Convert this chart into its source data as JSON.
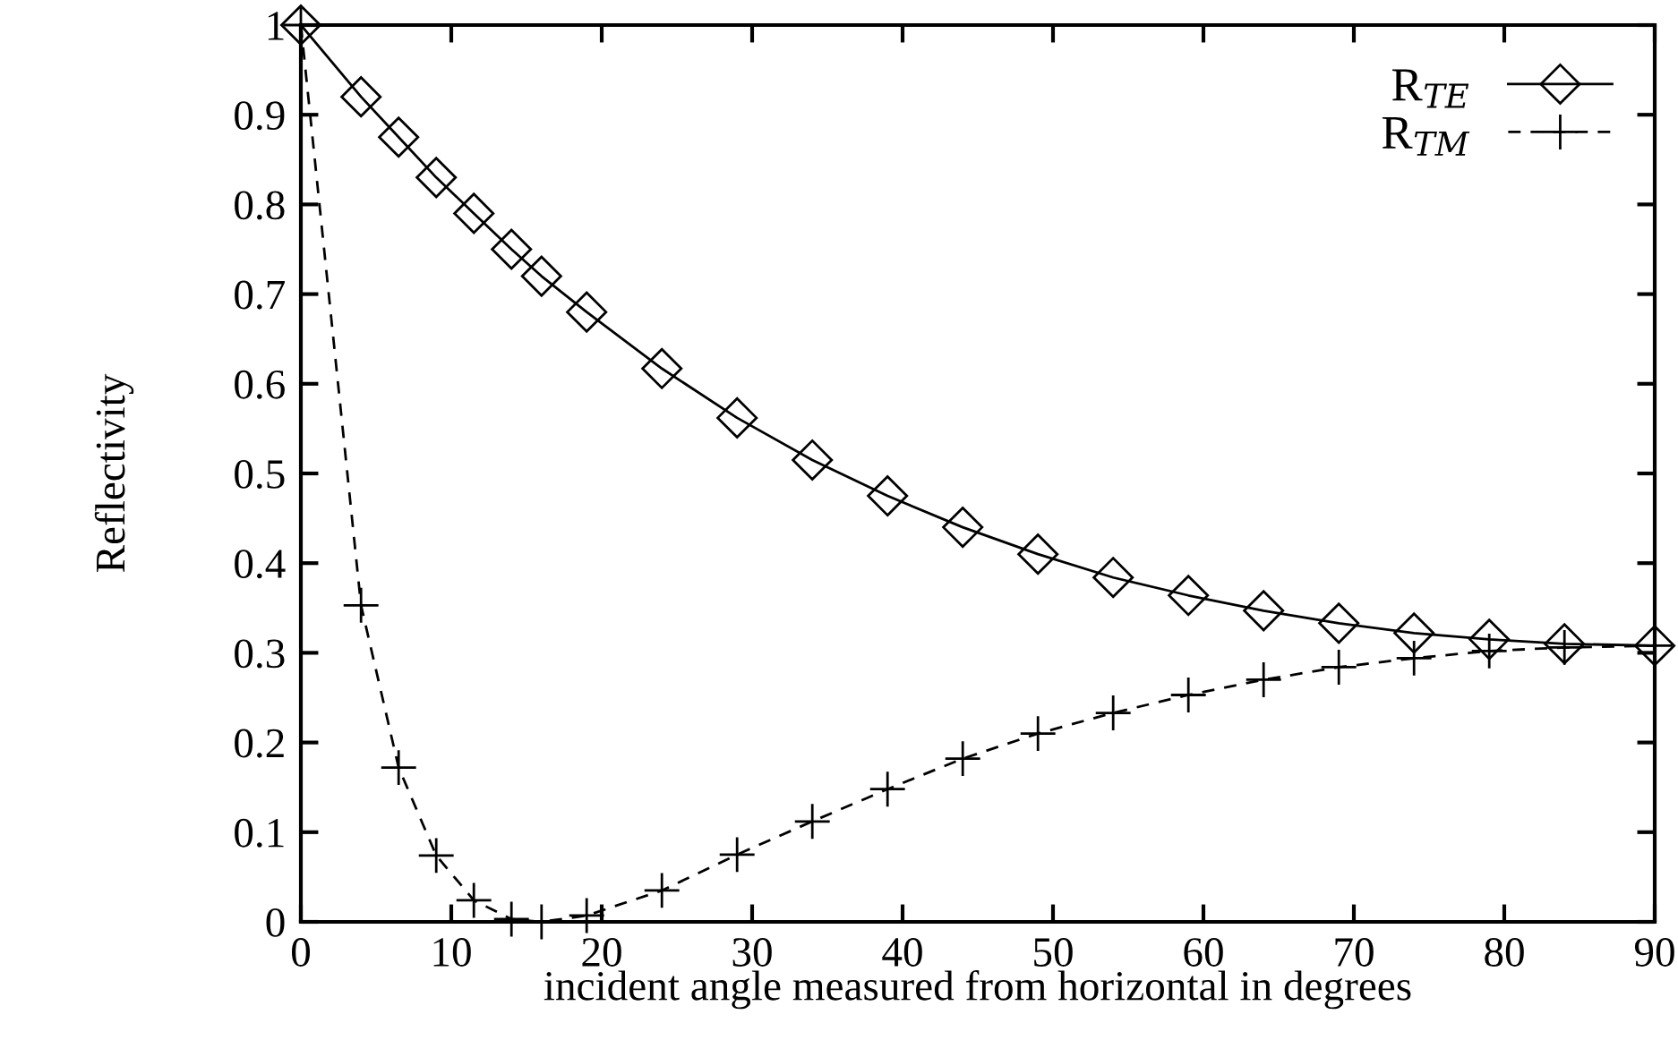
{
  "chart_data": {
    "type": "line",
    "xlabel": "incident angle measured from horizontal in degrees",
    "ylabel": "Reflectivity",
    "x": [
      0,
      4,
      6.5,
      9,
      11.5,
      14,
      16,
      19,
      24,
      29,
      34,
      39,
      44,
      49,
      54,
      59,
      64,
      69,
      74,
      79,
      84,
      90
    ],
    "series": [
      {
        "name": "R$_{TE}$",
        "color": "#000000",
        "marker": "diamond",
        "line_style": "solid",
        "values": [
          1,
          0.92,
          0.875,
          0.83,
          0.79,
          0.75,
          0.72,
          0.68,
          0.617,
          0.562,
          0.515,
          0.475,
          0.44,
          0.41,
          0.384,
          0.364,
          0.347,
          0.333,
          0.322,
          0.315,
          0.31,
          0.308
        ]
      },
      {
        "name": "R$_{TM}$",
        "color": "#000000",
        "marker": "cross",
        "line_style": "dashed",
        "values": [
          1,
          0.353,
          0.172,
          0.074,
          0.024,
          0.003,
          0.0,
          0.007,
          0.035,
          0.075,
          0.112,
          0.148,
          0.182,
          0.21,
          0.233,
          0.253,
          0.27,
          0.284,
          0.294,
          0.302,
          0.306,
          0.308
        ]
      }
    ],
    "xlim": [
      0,
      90
    ],
    "xticks": [
      0,
      10,
      20,
      30,
      40,
      50,
      60,
      70,
      80,
      90
    ],
    "ylim": [
      0,
      1
    ],
    "yticks": [
      0,
      0.1,
      0.2,
      0.3,
      0.4,
      0.5,
      0.6,
      0.7,
      0.8,
      0.9,
      1
    ],
    "grid": false,
    "legend": "top right"
  }
}
